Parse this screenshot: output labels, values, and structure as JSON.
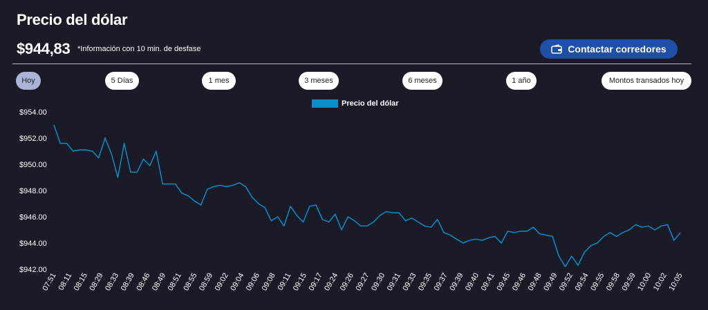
{
  "header": {
    "title": "Precio del dólar",
    "price": "$944,83",
    "delay_note": "*Información con 10 min. de desfase",
    "contact_button": "Contactar corredores"
  },
  "range_tabs": [
    {
      "label": "Hoy",
      "active": true
    },
    {
      "label": "5 Días",
      "active": false
    },
    {
      "label": "1 mes",
      "active": false
    },
    {
      "label": "3 meses",
      "active": false
    },
    {
      "label": "6 meses",
      "active": false
    },
    {
      "label": "1 año",
      "active": false
    },
    {
      "label": "Montos transados hoy",
      "active": false
    }
  ],
  "colors": {
    "background": "#1b1a27",
    "line": "#0b8ec8",
    "button": "#1f4fa6",
    "active_tab": "#aab3d6"
  },
  "chart_data": {
    "type": "line",
    "title": "",
    "xlabel": "",
    "ylabel": "",
    "legend": {
      "placement": "top-center",
      "entries": [
        "Precio del dólar"
      ]
    },
    "grid": false,
    "ylim": [
      942,
      954
    ],
    "y_ticks": [
      "$942.00",
      "$944.00",
      "$946.00",
      "$948.00",
      "$950.00",
      "$952.00",
      "$954.00"
    ],
    "x_tick_labels": [
      "07:51",
      "08:11",
      "08:15",
      "08:29",
      "08:33",
      "08:39",
      "08:46",
      "08:49",
      "08:51",
      "08:55",
      "08:59",
      "09:02",
      "09:04",
      "09:06",
      "09:08",
      "09:11",
      "09:15",
      "09:17",
      "09:24",
      "09:26",
      "09:27",
      "09:30",
      "09:31",
      "09:33",
      "09:35",
      "09:37",
      "09:39",
      "09:40",
      "09:41",
      "09:45",
      "09:46",
      "09:48",
      "09:49",
      "09:52",
      "09:54",
      "09:55",
      "09:58",
      "09:59",
      "10:00",
      "10:02",
      "10:05"
    ],
    "series": [
      {
        "name": "Precio del dólar",
        "values": [
          953.0,
          951.6,
          951.6,
          951.0,
          951.1,
          951.1,
          951.0,
          950.5,
          952.0,
          950.8,
          949.0,
          951.6,
          949.4,
          949.4,
          950.4,
          949.9,
          951.0,
          948.5,
          948.5,
          948.5,
          947.8,
          947.6,
          947.2,
          946.9,
          948.1,
          948.3,
          948.4,
          948.3,
          948.4,
          948.6,
          948.3,
          947.5,
          947.0,
          946.7,
          945.7,
          946.0,
          945.3,
          946.8,
          946.1,
          945.6,
          946.8,
          946.9,
          945.8,
          945.6,
          946.2,
          945.0,
          946.0,
          945.7,
          945.3,
          945.3,
          945.6,
          946.1,
          946.4,
          946.3,
          946.3,
          945.7,
          945.9,
          945.6,
          945.3,
          945.2,
          945.8,
          944.8,
          944.6,
          944.3,
          944.0,
          944.2,
          944.3,
          944.2,
          944.4,
          944.5,
          944.0,
          944.9,
          944.8,
          944.9,
          944.9,
          945.2,
          944.7,
          944.6,
          944.5,
          943.0,
          942.2,
          943.0,
          942.3,
          943.3,
          943.8,
          944.0,
          944.5,
          944.8,
          944.5,
          944.8,
          945.0,
          945.4,
          945.2,
          945.3,
          945.0,
          945.3,
          945.4,
          944.2,
          944.8
        ]
      }
    ]
  }
}
